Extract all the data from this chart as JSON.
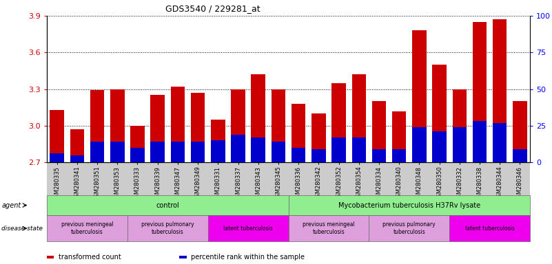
{
  "title": "GDS3540 / 229281_at",
  "samples": [
    "GSM280335",
    "GSM280341",
    "GSM280351",
    "GSM280353",
    "GSM280333",
    "GSM280339",
    "GSM280347",
    "GSM280349",
    "GSM280331",
    "GSM280337",
    "GSM280343",
    "GSM280345",
    "GSM280336",
    "GSM280342",
    "GSM280352",
    "GSM280354",
    "GSM280334",
    "GSM280340",
    "GSM280348",
    "GSM280350",
    "GSM280332",
    "GSM280338",
    "GSM280344",
    "GSM280346"
  ],
  "transformed_count": [
    3.13,
    2.97,
    3.29,
    3.3,
    3.0,
    3.25,
    3.32,
    3.27,
    3.05,
    3.3,
    3.42,
    3.3,
    3.18,
    3.1,
    3.35,
    3.42,
    3.2,
    3.12,
    3.78,
    3.5,
    3.3,
    3.85,
    3.87,
    3.2
  ],
  "percentile_rank": [
    6,
    5,
    14,
    14,
    10,
    14,
    14,
    14,
    15,
    19,
    17,
    14,
    10,
    9,
    17,
    17,
    9,
    9,
    24,
    21,
    24,
    28,
    27,
    9
  ],
  "y_min": 2.7,
  "y_max": 3.9,
  "y_ticks": [
    2.7,
    3.0,
    3.3,
    3.6,
    3.9
  ],
  "right_y_ticks": [
    0,
    25,
    50,
    75,
    100
  ],
  "bar_color": "#CC0000",
  "blue_color": "#0000CC",
  "agent_groups": [
    {
      "label": "control",
      "start": 0,
      "end": 11,
      "color": "#90EE90"
    },
    {
      "label": "Mycobacterium tuberculosis H37Rv lysate",
      "start": 12,
      "end": 23,
      "color": "#90EE90"
    }
  ],
  "disease_groups": [
    {
      "label": "previous meningeal\ntuberculosis",
      "start": 0,
      "end": 3,
      "color": "#DDA0DD"
    },
    {
      "label": "previous pulmonary\ntuberculosis",
      "start": 4,
      "end": 7,
      "color": "#DDA0DD"
    },
    {
      "label": "latent tuberculosis",
      "start": 8,
      "end": 11,
      "color": "#EE00EE"
    },
    {
      "label": "previous meningeal\ntuberculosis",
      "start": 12,
      "end": 15,
      "color": "#DDA0DD"
    },
    {
      "label": "previous pulmonary\ntuberculosis",
      "start": 16,
      "end": 19,
      "color": "#DDA0DD"
    },
    {
      "label": "latent tuberculosis",
      "start": 20,
      "end": 23,
      "color": "#EE00EE"
    }
  ],
  "legend_items": [
    {
      "label": "transformed count",
      "color": "#CC0000"
    },
    {
      "label": "percentile rank within the sample",
      "color": "#0000CC"
    }
  ]
}
